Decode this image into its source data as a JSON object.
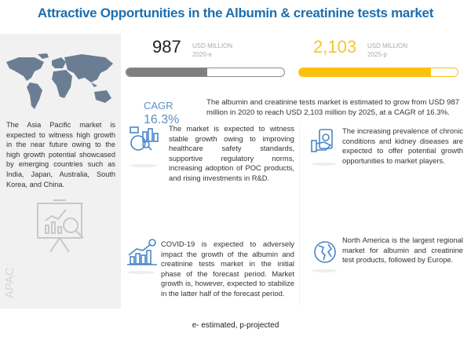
{
  "title": "Attractive Opportunities in the Albumin & creatinine tests market",
  "left_panel": {
    "text": "The Asia Pacific market is expected to witness high growth in the near future owing to the high growth potential showcased by emerging countries such as India, Japan, Australia, South Korea, and China.",
    "label": "APAC"
  },
  "metrics": [
    {
      "value": "987",
      "unit": "USD MILLION",
      "period": "2020-e",
      "fill_percent": 51,
      "color": "#7f7f7f"
    },
    {
      "value": "2,103",
      "unit": "USD MILLION",
      "period": "2025-p",
      "fill_percent": 83,
      "color": "#fcc10f"
    }
  ],
  "cagr": {
    "label": "CAGR",
    "value": "16.3%"
  },
  "summary": "The albumin and creatinine tests market is estimated to grow from USD 987 million in 2020 to reach USD 2,103 million by 2025, at a CAGR of 16.3%.",
  "cards": [
    {
      "icon": "analytics-icon",
      "text": "The market is expected to witness stable growth owing to improving healthcare safety standards, supportive regulatory norms, increasing adoption of POC products, and rising investments in R&D."
    },
    {
      "icon": "money-hand-icon",
      "text": "The increasing prevalence of chronic conditions and kidney diseases are expected to offer potential growth opportunities to market players."
    },
    {
      "icon": "growth-chart-icon",
      "text": "COVID-19 is expected to adversely impact the growth of the albumin and creatinine tests market in the initial phase of the forecast period. Market growth is, however, expected to stabilize in the latter half of the forecast period."
    },
    {
      "icon": "globe-icon",
      "text": "North America is the largest regional market for albumin and creatinine test products, followed by Europe."
    }
  ],
  "footer": "e- estimated, p-projected",
  "colors": {
    "title": "#1d6fae",
    "icon": "#4a86c5",
    "cagr": "#5b8fc7"
  }
}
